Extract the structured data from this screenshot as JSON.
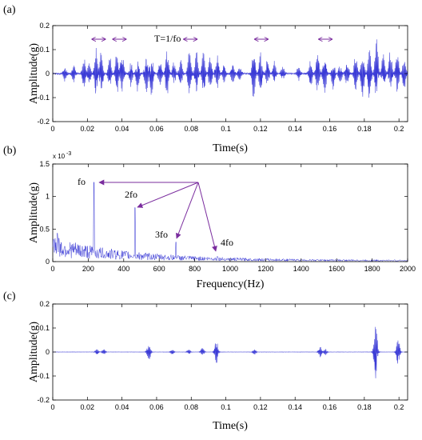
{
  "chart_data": [
    {
      "type": "line",
      "panel_label": "(a)",
      "xlabel": "Time(s)",
      "ylabel": "Amplitude(g)",
      "xlim": [
        0,
        0.205
      ],
      "ylim": [
        -0.2,
        0.2
      ],
      "xticks": [
        "0",
        "0.02",
        "0.04",
        "0.06",
        "0.08",
        "0.1",
        "0.12",
        "0.14",
        "0.16",
        "0.18",
        "0.2"
      ],
      "yticks": [
        "-0.2",
        "-0.1",
        "0",
        "0.1",
        "0.2"
      ],
      "series_color": "#3b3bd6",
      "period_annotation": "T=1/fo",
      "period_arrows": [
        0.0265,
        0.0385,
        0.0795,
        0.1205,
        0.1575
      ],
      "bursts": [
        {
          "t": 0.007,
          "amp": 0.03
        },
        {
          "t": 0.012,
          "amp": 0.04
        },
        {
          "t": 0.018,
          "amp": 0.07
        },
        {
          "t": 0.021,
          "amp": 0.05
        },
        {
          "t": 0.025,
          "amp": 0.11
        },
        {
          "t": 0.028,
          "amp": 0.1
        },
        {
          "t": 0.033,
          "amp": 0.07
        },
        {
          "t": 0.037,
          "amp": 0.09
        },
        {
          "t": 0.04,
          "amp": 0.1
        },
        {
          "t": 0.045,
          "amp": 0.06
        },
        {
          "t": 0.049,
          "amp": 0.08
        },
        {
          "t": 0.054,
          "amp": 0.09
        },
        {
          "t": 0.057,
          "amp": 0.11
        },
        {
          "t": 0.062,
          "amp": 0.06
        },
        {
          "t": 0.066,
          "amp": 0.11
        },
        {
          "t": 0.07,
          "amp": 0.05
        },
        {
          "t": 0.074,
          "amp": 0.06
        },
        {
          "t": 0.079,
          "amp": 0.11
        },
        {
          "t": 0.083,
          "amp": 0.1
        },
        {
          "t": 0.087,
          "amp": 0.11
        },
        {
          "t": 0.091,
          "amp": 0.08
        },
        {
          "t": 0.095,
          "amp": 0.1
        },
        {
          "t": 0.099,
          "amp": 0.04
        },
        {
          "t": 0.104,
          "amp": 0.05
        },
        {
          "t": 0.108,
          "amp": 0.03
        },
        {
          "t": 0.116,
          "amp": 0.11
        },
        {
          "t": 0.12,
          "amp": 0.09
        },
        {
          "t": 0.124,
          "amp": 0.06
        },
        {
          "t": 0.128,
          "amp": 0.05
        },
        {
          "t": 0.133,
          "amp": 0.03
        },
        {
          "t": 0.142,
          "amp": 0.03
        },
        {
          "t": 0.149,
          "amp": 0.06
        },
        {
          "t": 0.153,
          "amp": 0.1
        },
        {
          "t": 0.157,
          "amp": 0.09
        },
        {
          "t": 0.162,
          "amp": 0.07
        },
        {
          "t": 0.166,
          "amp": 0.04
        },
        {
          "t": 0.17,
          "amp": 0.06
        },
        {
          "t": 0.175,
          "amp": 0.09
        },
        {
          "t": 0.179,
          "amp": 0.11
        },
        {
          "t": 0.183,
          "amp": 0.12
        },
        {
          "t": 0.187,
          "amp": 0.17
        },
        {
          "t": 0.191,
          "amp": 0.09
        },
        {
          "t": 0.195,
          "amp": 0.1
        },
        {
          "t": 0.199,
          "amp": 0.1
        },
        {
          "t": 0.203,
          "amp": 0.08
        }
      ]
    },
    {
      "type": "line",
      "panel_label": "(b)",
      "xlabel": "Frequency(Hz)",
      "ylabel": "Amplitude(g)",
      "y_multiplier": "x 10",
      "y_exponent": "-3",
      "xlim": [
        0,
        2000
      ],
      "ylim": [
        0,
        1.5
      ],
      "xticks": [
        "0",
        "200",
        "400",
        "600",
        "800",
        "1000",
        "1200",
        "1400",
        "1600",
        "1800",
        "2000"
      ],
      "yticks": [
        "0",
        "0.5",
        "1",
        "1.5"
      ],
      "series_color": "#3b3bd6",
      "arrow_color": "#7a2c9e",
      "peaks": [
        {
          "label": "fo",
          "freq": 232,
          "amp": 1.22
        },
        {
          "label": "2fo",
          "freq": 464,
          "amp": 0.83
        },
        {
          "label": "3fo",
          "freq": 695,
          "amp": 0.3
        },
        {
          "label": "4fo",
          "freq": 927,
          "amp": 0.08
        }
      ]
    },
    {
      "type": "line",
      "panel_label": "(c)",
      "xlabel": "Time(s)",
      "ylabel": "Amplitude(g)",
      "xlim": [
        0,
        0.205
      ],
      "ylim": [
        -0.2,
        0.2
      ],
      "xticks": [
        "0",
        "0.02",
        "0.04",
        "0.06",
        "0.08",
        "0.1",
        "0.12",
        "0.14",
        "0.16",
        "0.18",
        "0.2"
      ],
      "yticks": [
        "-0.2",
        "-0.1",
        "0",
        "0.1",
        "0.2"
      ],
      "series_color": "#3b3bd6",
      "bursts": [
        {
          "t": 0.0255,
          "amp": 0.015
        },
        {
          "t": 0.0295,
          "amp": 0.012
        },
        {
          "t": 0.0555,
          "amp": 0.045
        },
        {
          "t": 0.069,
          "amp": 0.012
        },
        {
          "t": 0.0785,
          "amp": 0.012
        },
        {
          "t": 0.0865,
          "amp": 0.022
        },
        {
          "t": 0.0945,
          "amp": 0.05
        },
        {
          "t": 0.1165,
          "amp": 0.012
        },
        {
          "t": 0.1545,
          "amp": 0.022
        },
        {
          "t": 0.1575,
          "amp": 0.016
        },
        {
          "t": 0.1865,
          "amp": 0.13
        },
        {
          "t": 0.1995,
          "amp": 0.065
        }
      ]
    }
  ]
}
